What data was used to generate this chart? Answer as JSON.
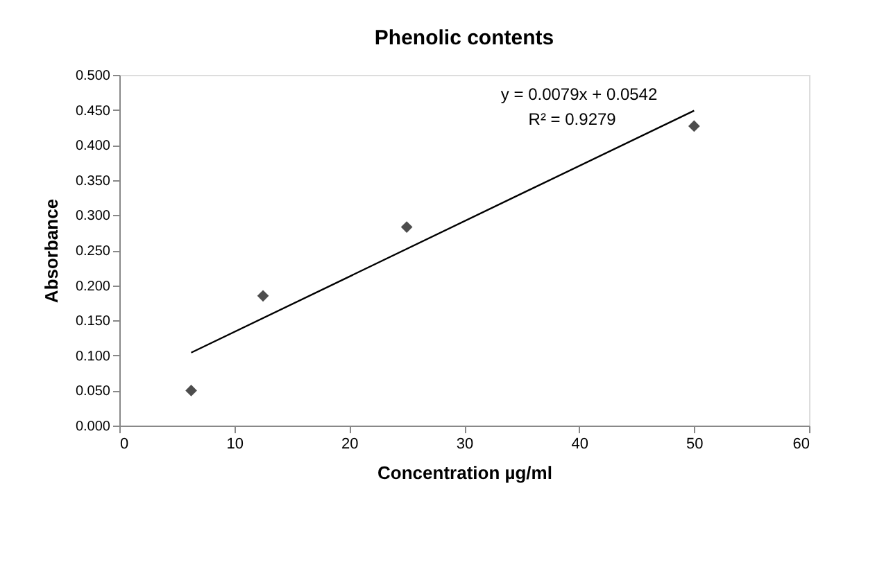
{
  "chart_data": {
    "type": "scatter",
    "title": "Phenolic contents",
    "xlabel": "Concentration µg/ml",
    "ylabel": "Absorbance",
    "series": [
      {
        "color": "#4d4d4d",
        "marker": "diamond",
        "x": [
          6.25,
          12.5,
          25,
          50
        ],
        "values": [
          0.05,
          0.185,
          0.283,
          0.427
        ]
      },
      {
        "type": "line",
        "color": "#000000",
        "marker": "none",
        "line_style": "solid",
        "x": [
          6.25,
          50
        ],
        "values": [
          0.104,
          0.449
        ]
      }
    ],
    "xlim": [
      0,
      60
    ],
    "xticks": [
      0,
      10,
      20,
      30,
      40,
      50,
      60
    ],
    "ylim": [
      0,
      0.5
    ],
    "yticks": [
      {
        "value": 0,
        "label": "0.000"
      },
      {
        "value": 0.05,
        "label": "0.050"
      },
      {
        "value": 0.1,
        "label": "0.100"
      },
      {
        "value": 0.15,
        "label": "0.150"
      },
      {
        "value": 0.2,
        "label": "0.200"
      },
      {
        "value": 0.25,
        "label": "0.250"
      },
      {
        "value": 0.3,
        "label": "0.300"
      },
      {
        "value": 0.35,
        "label": "0.350"
      },
      {
        "value": 0.4,
        "label": "0.400"
      },
      {
        "value": 0.45,
        "label": "0.450"
      },
      {
        "value": 0.5,
        "label": "0.500"
      }
    ],
    "grid": false,
    "legend": false,
    "annotations": [
      "y = 0.0079x + 0.0542",
      "R² = 0.9279"
    ]
  }
}
